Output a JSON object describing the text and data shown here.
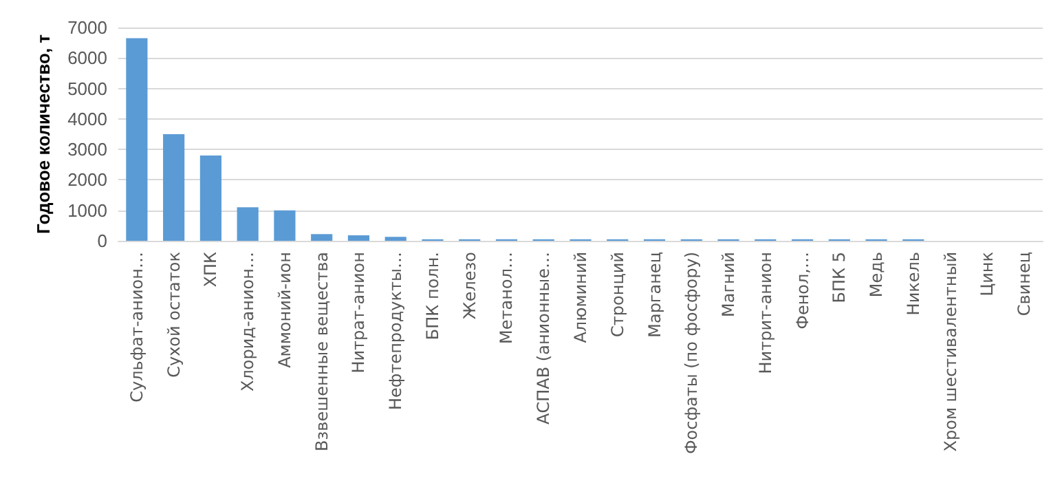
{
  "chart_data": {
    "type": "bar",
    "ylabel": "Годовое количество, т",
    "categories": [
      "Сульфат-анион…",
      "Сухой остаток",
      "ХПК",
      "Хлорид-анион…",
      "Аммоний-ион",
      "Взвешенные вещества",
      "Нитрат-анион",
      "Нефтепродукты…",
      "БПК полн.",
      "Железо",
      "Метанол…",
      "АСПАВ (анионные…",
      "Алюминий",
      "Стронций",
      "Марганец",
      "Фосфаты (по фосфору)",
      "Магний",
      "Нитрит-анион",
      "Фенол,…",
      "БПК 5",
      "Медь",
      "Никель",
      "Хром шестивалентный",
      "Цинк",
      "Свинец"
    ],
    "values": [
      6650,
      3500,
      2800,
      1100,
      1000,
      220,
      180,
      130,
      50,
      50,
      50,
      50,
      50,
      50,
      50,
      50,
      50,
      50,
      50,
      50,
      50,
      50,
      0,
      0,
      0
    ],
    "color": "#5b9bd5",
    "ylim": [
      0,
      7000
    ],
    "yticks": [
      0,
      1000,
      2000,
      3000,
      4000,
      5000,
      6000,
      7000
    ],
    "grid": "y"
  }
}
